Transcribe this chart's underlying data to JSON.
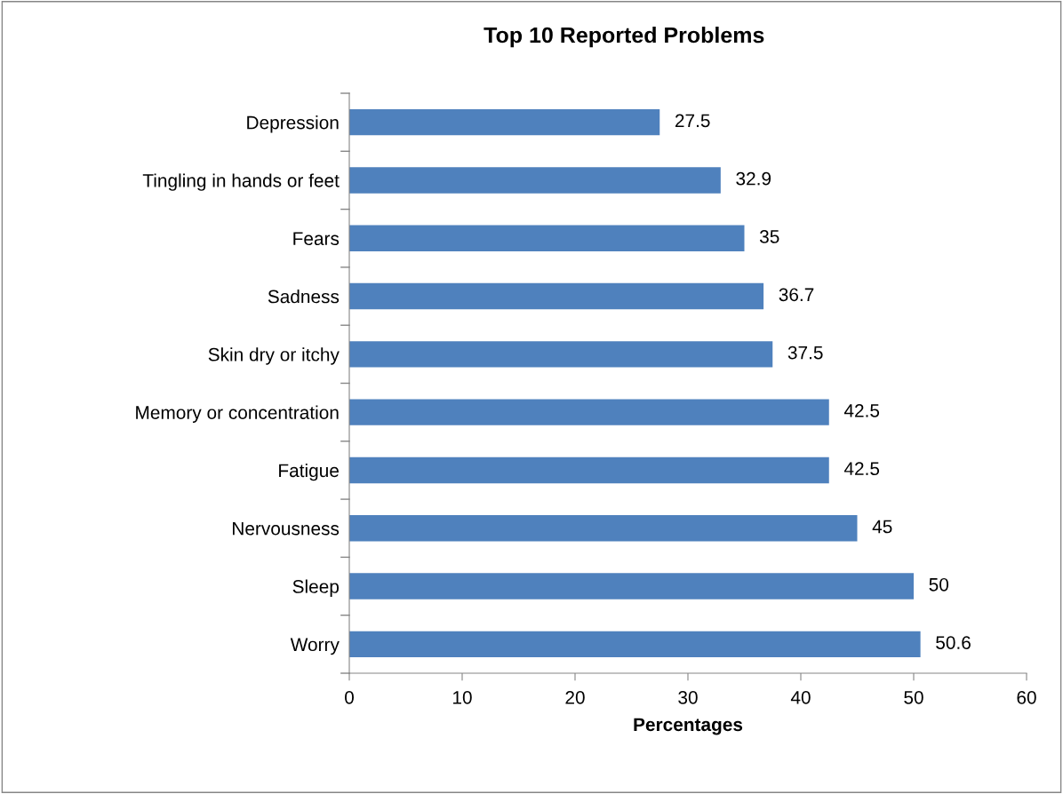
{
  "chart_data": {
    "type": "bar",
    "orientation": "horizontal",
    "title": "Top 10 Reported Problems",
    "xlabel": "Percentages",
    "categories": [
      "Depression",
      "Tingling in hands or feet",
      "Fears",
      "Sadness",
      "Skin dry or itchy",
      "Memory or concentration",
      "Fatigue",
      "Nervousness",
      "Sleep",
      "Worry"
    ],
    "values": [
      27.5,
      32.9,
      35,
      36.7,
      37.5,
      42.5,
      42.5,
      45,
      50,
      50.6
    ],
    "color": "#4f81bd",
    "xlim": [
      0,
      60
    ],
    "xticks": [
      0,
      10,
      20,
      30,
      40,
      50,
      60
    ],
    "grid": false,
    "data_labels": true
  }
}
